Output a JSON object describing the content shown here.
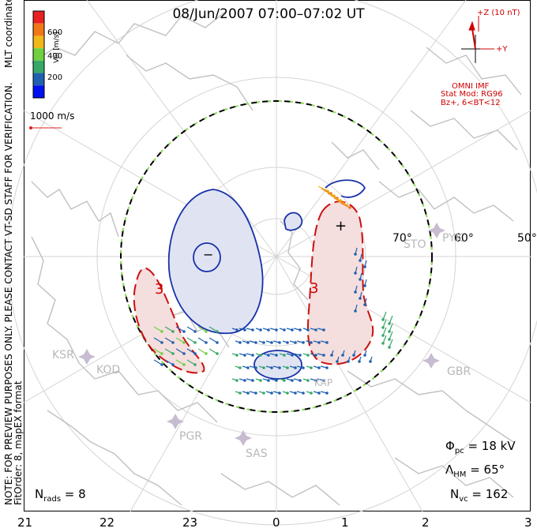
{
  "title": "08/Jun/2007 07:00–07:02 UT",
  "notes": {
    "preview": "NOTE: FOR PREVIEW PURPOSES ONLY. PLEASE CONTACT VT-SD STAFF FOR VERIFICATION.",
    "fit": "FitOrder: 8, mapEX format",
    "coords": "MLT coordinates"
  },
  "colorbar": {
    "label": "Vel [m/s]",
    "ticks": [
      "600",
      "400",
      "200"
    ],
    "colors": [
      "#e82020",
      "#f07818",
      "#f0b818",
      "#70d040",
      "#38a868",
      "#2060b0",
      "#0010f0"
    ]
  },
  "scale": {
    "label": "1000 m/s"
  },
  "imf": {
    "plus_z": "+Z (10 nT)",
    "plus_y": "+Y",
    "source": "OMNI IMF",
    "model": "Stat Mod: RG96",
    "cond": "Bz+, 6<BT<12"
  },
  "lat_labels": [
    "70°",
    "60°",
    "50°"
  ],
  "stations": [
    "STO",
    "PYK",
    "KSR",
    "KOD",
    "GBR",
    "PGR",
    "SAS",
    "KAP"
  ],
  "mlt_labels": [
    "21",
    "22",
    "23",
    "0",
    "1",
    "2",
    "3"
  ],
  "stats": {
    "phi_pc": "18 kV",
    "lambda_hm": "65°",
    "n_vc": "162",
    "n_rads": "8"
  },
  "contours": {
    "neg": "−",
    "pos": "+",
    "three_a": "3",
    "three_b": "3"
  }
}
